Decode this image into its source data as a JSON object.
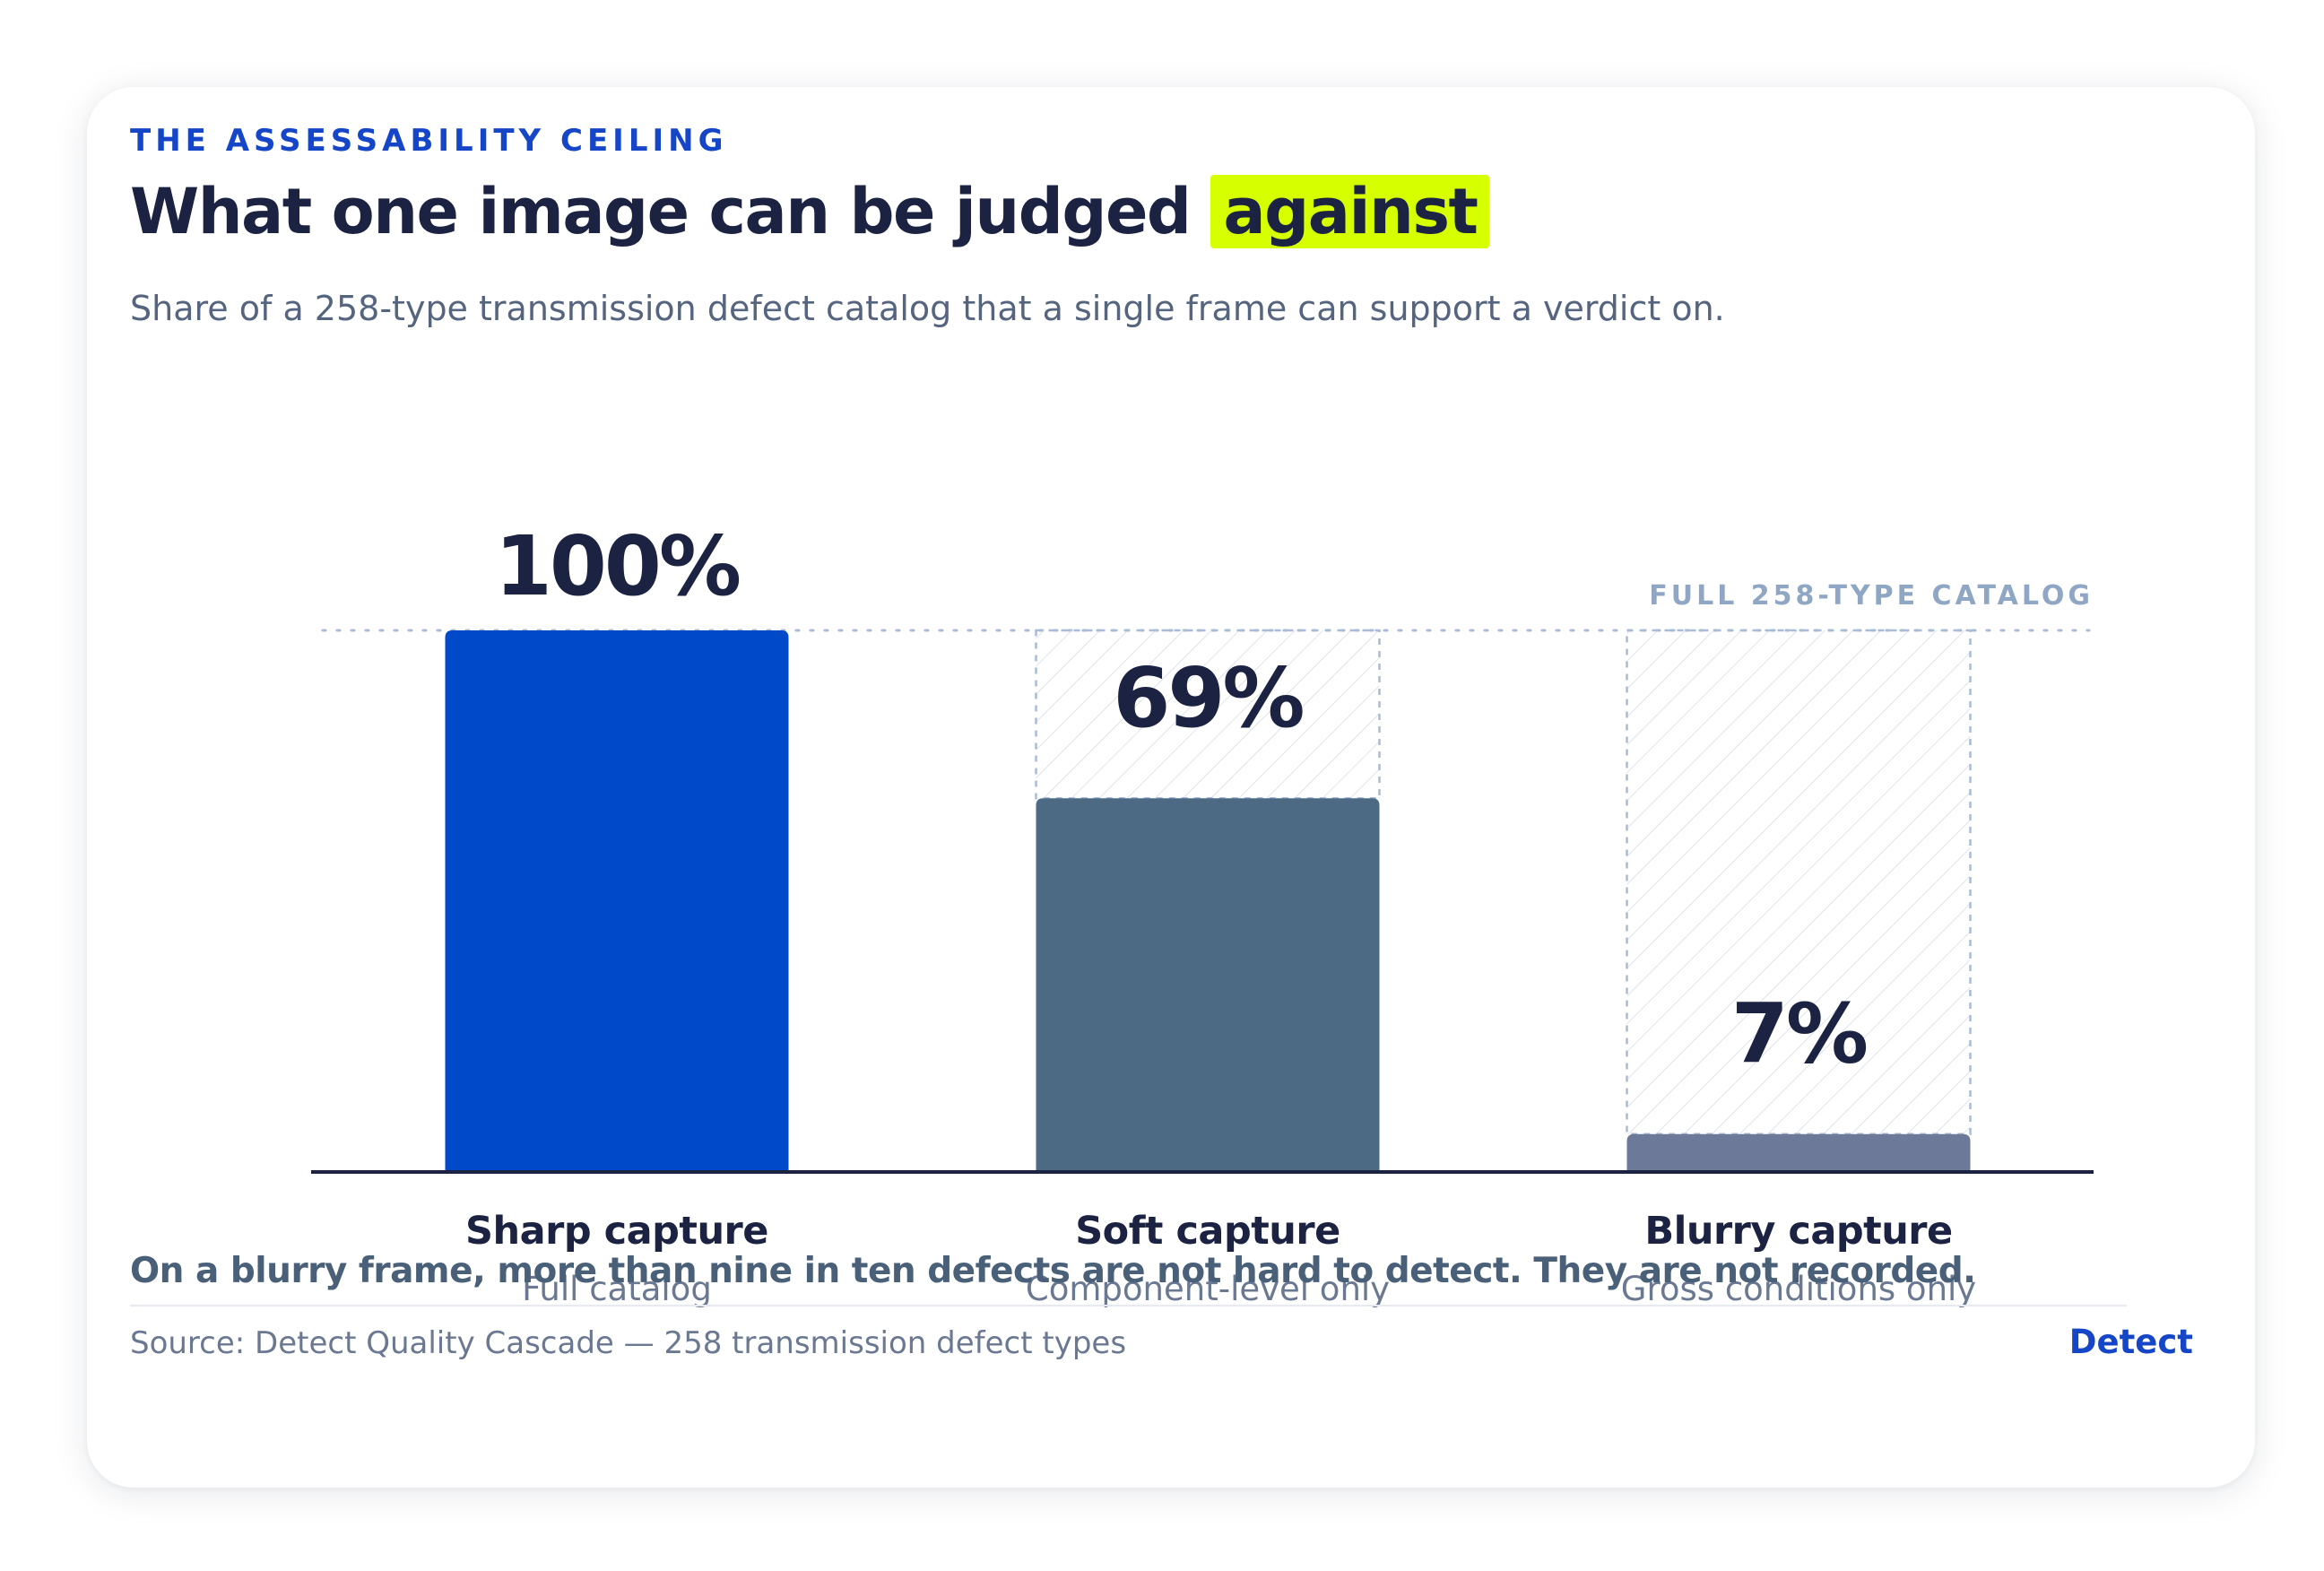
{
  "header": {
    "eyebrow": "THE ASSESSABILITY CEILING",
    "title_main": "What one image can be judged",
    "title_highlight": "against",
    "subtitle": "Share of a 258-type transmission defect catalog that a single frame can support a verdict on."
  },
  "chart_data": {
    "type": "bar",
    "categories": [
      "Sharp capture",
      "Soft capture",
      "Blurry capture"
    ],
    "sublabels": [
      "Full catalog",
      "Component-level only",
      "Gross conditions only"
    ],
    "values": [
      100,
      69,
      7
    ],
    "value_labels": [
      "100%",
      "69%",
      "7%"
    ],
    "ylim": [
      0,
      100
    ],
    "reference_line": {
      "value": 100,
      "label": "FULL 258-TYPE CATALOG"
    },
    "colors": [
      "#0049c9",
      "#4d6a85",
      "#6c7998"
    ],
    "grid": false
  },
  "footnote": "On a blurry frame, more than nine in ten defects are not hard to detect. They are not recorded.",
  "source": "Source: Detect Quality Cascade — 258 transmission defect types",
  "brand": "Detect"
}
